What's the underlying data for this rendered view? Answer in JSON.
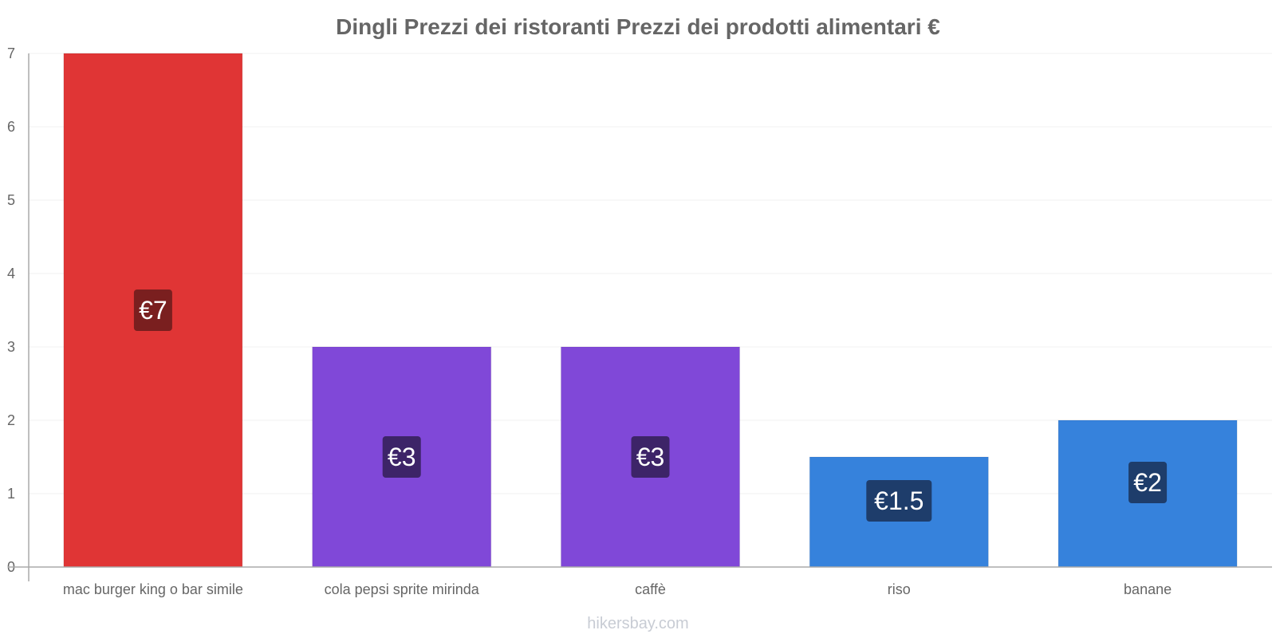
{
  "chart_data": {
    "type": "bar",
    "title": "Dingli Prezzi dei ristoranti Prezzi dei prodotti alimentari €",
    "categories": [
      "mac burger king o bar simile",
      "cola pepsi sprite mirinda",
      "caffè",
      "riso",
      "banane"
    ],
    "values": [
      7,
      3,
      3,
      1.5,
      2
    ],
    "value_labels": [
      "€7",
      "€3",
      "€3",
      "€1.5",
      "€2"
    ],
    "bar_colors": [
      "#e03535",
      "#8048d8",
      "#8048d8",
      "#3682dc",
      "#3682dc"
    ],
    "label_box_colors": [
      "#7a1f1f",
      "#3d2468",
      "#3d2468",
      "#1e3d6b",
      "#1e3d6b"
    ],
    "xlabel": "",
    "ylabel": "",
    "ylim": [
      0,
      7
    ],
    "yticks": [
      0,
      1,
      2,
      3,
      4,
      5,
      6,
      7
    ],
    "grid": true
  },
  "footer": {
    "source": "hikersbay.com"
  },
  "colors": {
    "axis": "#aaaaaa",
    "grid": "#f0f0f0",
    "text": "#666666"
  }
}
